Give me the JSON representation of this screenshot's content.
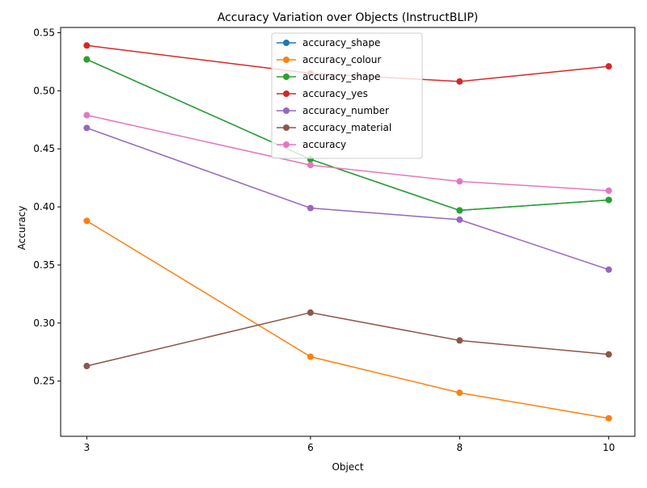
{
  "chart_data": {
    "type": "line",
    "title": "Accuracy Variation over Objects (InstructBLIP)",
    "xlabel": "Object",
    "ylabel": "Accuracy",
    "categories": [
      "3",
      "6",
      "8",
      "10"
    ],
    "x": [
      3,
      6,
      8,
      10
    ],
    "xlim": [
      2.65,
      10.35
    ],
    "ylim": [
      0.2025,
      0.5545
    ],
    "yticks": [
      0.25,
      0.3,
      0.35,
      0.4,
      0.45,
      0.5,
      0.55
    ],
    "ytick_labels": [
      "0.25",
      "0.30",
      "0.35",
      "0.40",
      "0.45",
      "0.50",
      "0.55"
    ],
    "grid": false,
    "legend_position": "top-center",
    "series": [
      {
        "name": "accuracy_shape",
        "color": "#1f77b4",
        "values": [
          0.527,
          0.441,
          0.397,
          0.406
        ]
      },
      {
        "name": "accuracy_colour",
        "color": "#ff7f0e",
        "values": [
          0.388,
          0.271,
          0.24,
          0.218
        ]
      },
      {
        "name": "accuracy_shape",
        "color": "#2ca02c",
        "values": [
          0.527,
          0.441,
          0.397,
          0.406
        ]
      },
      {
        "name": "accuracy_yes",
        "color": "#d62728",
        "values": [
          0.539,
          0.515,
          0.508,
          0.521
        ]
      },
      {
        "name": "accuracy_number",
        "color": "#9467bd",
        "values": [
          0.468,
          0.399,
          0.389,
          0.346
        ]
      },
      {
        "name": "accuracy_material",
        "color": "#8c564b",
        "values": [
          0.263,
          0.309,
          0.285,
          0.273
        ]
      },
      {
        "name": "accuracy",
        "color": "#e377c2",
        "values": [
          0.479,
          0.436,
          0.422,
          0.414
        ]
      }
    ]
  }
}
